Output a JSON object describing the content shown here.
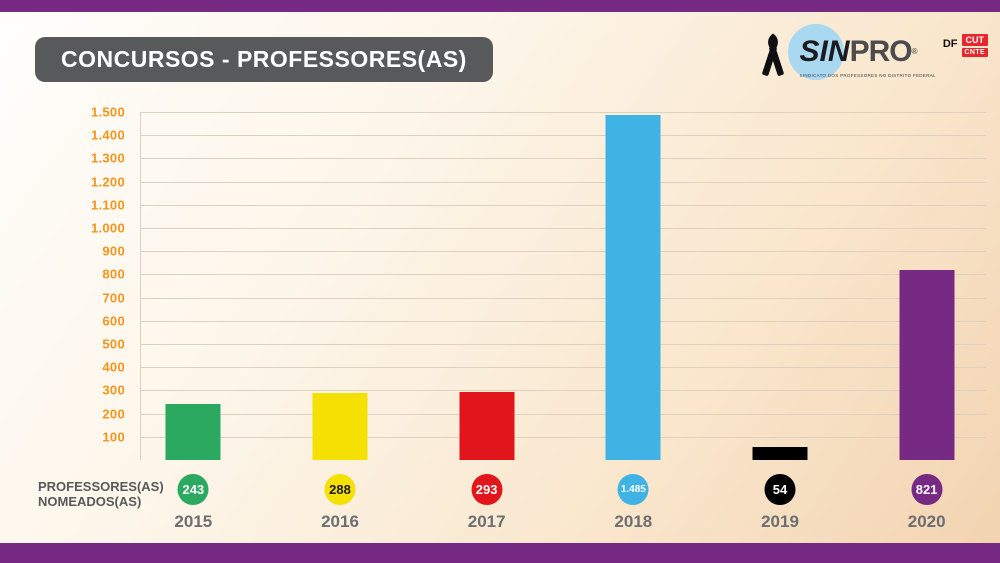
{
  "theme": {
    "purple": "#762a84",
    "title_bg": "#58595b",
    "axis_label_color": "#f7941e",
    "year_label_color": "#6d6e71",
    "grid_color": "#ded1bf",
    "row_label_color": "#58595b"
  },
  "header": {
    "title": "CONCURSOS - PROFESSORES(AS)"
  },
  "logo": {
    "sin": "SIN",
    "pro": "PRO",
    "reg": "®",
    "tagline": "SINDICATO DOS PROFESSORES NO DISTRITO FEDERAL",
    "df": "DF",
    "cut": "CUT",
    "cnte": "CNTE"
  },
  "row_label": {
    "line1": "PROFESSORES(AS)",
    "line2": "NOMEADOS(AS)"
  },
  "chart_data": {
    "type": "bar",
    "title": "CONCURSOS - PROFESSORES(AS)",
    "series_label": "PROFESSORES(AS) NOMEADOS(AS)",
    "categories": [
      "2015",
      "2016",
      "2017",
      "2018",
      "2019",
      "2020"
    ],
    "values": [
      243,
      288,
      293,
      1485,
      54,
      821
    ],
    "value_labels": [
      "243",
      "288",
      "293",
      "1.485",
      "54",
      "821"
    ],
    "bar_colors": [
      "#2ca961",
      "#f5e003",
      "#e2151c",
      "#3fb3e4",
      "#000000",
      "#762a84"
    ],
    "value_text_colors": [
      "#ffffff",
      "#1a1a1a",
      "#ffffff",
      "#ffffff",
      "#ffffff",
      "#ffffff"
    ],
    "xlabel": "",
    "ylabel": "",
    "ylim": [
      0,
      1500
    ],
    "ytick_step": 100,
    "ytick_labels_desc": [
      "1.500",
      "1.400",
      "1.300",
      "1.200",
      "1.100",
      "1.000",
      "900",
      "800",
      "700",
      "600",
      "500",
      "400",
      "300",
      "200",
      "100"
    ],
    "grid": true,
    "legend": "none"
  }
}
